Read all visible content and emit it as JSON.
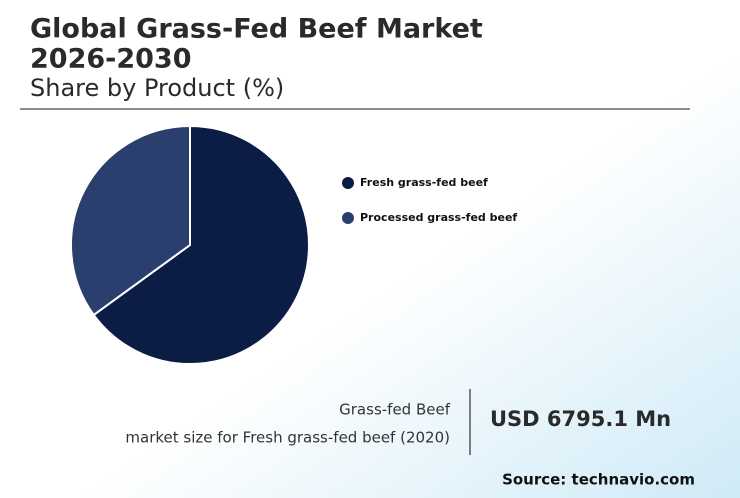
{
  "chart_data": {
    "type": "pie",
    "title_lines": [
      "Global Grass-Fed Beef Market",
      "2026-2030"
    ],
    "subtitle": "Share by Product (%)",
    "categories": [
      "Fresh grass-fed beef",
      "Processed grass-fed beef"
    ],
    "values": [
      65,
      35
    ],
    "colors": [
      "#0b1c45",
      "#2b3f6e"
    ]
  },
  "market_size": {
    "label_lines": [
      "Grass-fed Beef",
      "market size for Fresh grass-fed beef (2020)"
    ],
    "value": "USD 6795.1 Mn"
  },
  "source": "Source: technavio.com"
}
